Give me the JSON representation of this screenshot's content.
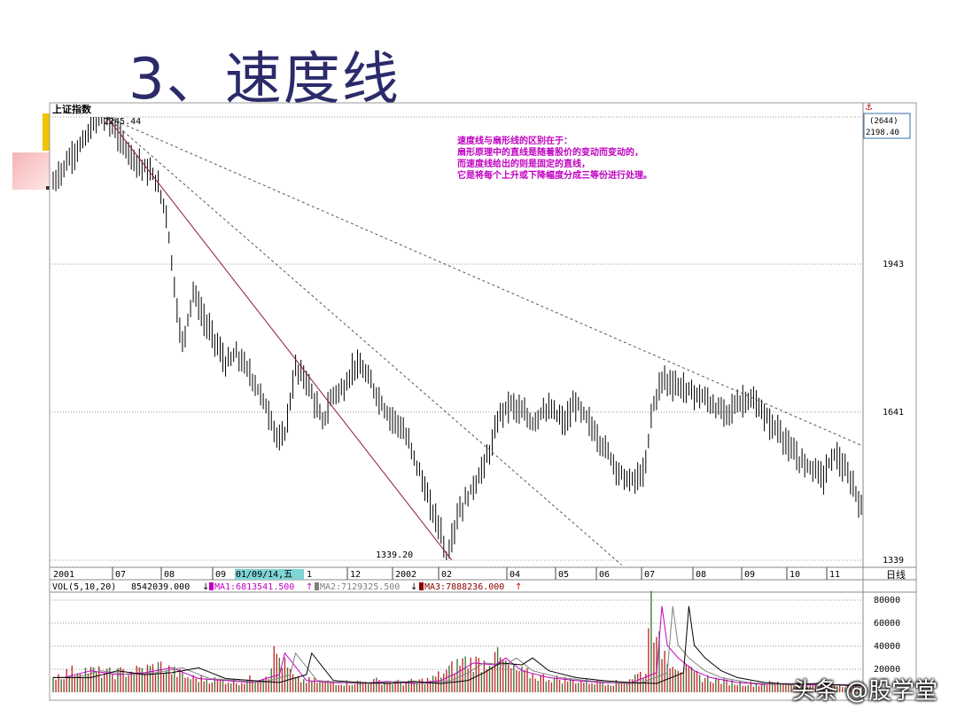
{
  "slide": {
    "title": "3、速度线",
    "watermark": "头条 @股学堂"
  },
  "chart_data": {
    "type": "candlestick",
    "title": "上证指数",
    "period_label": "日线",
    "y_ticks": [
      "2245",
      "1943",
      "1641",
      "1339"
    ],
    "x_ticks": [
      "2001",
      "07",
      "08",
      "09",
      "01/09/14,五",
      "1",
      "12",
      "2002",
      "02",
      "04",
      "05",
      "06",
      "07",
      "08",
      "09",
      "10",
      "11"
    ],
    "high_label": "2245.44",
    "low_label": "1339.20",
    "right_box": {
      "symbol": "⚓",
      "code": "(2644)",
      "price": "2198.40"
    },
    "annotation_lines": [
      "速度线与扇形线的区别在于：",
      "扇形原理中的直线是随着股价的变动而变动的，",
      "而速度线给出的则是固定的直线，",
      "它是将每个上升或下降幅度分成三等份进行处理。"
    ],
    "volume": {
      "label": "VOL(5,10,20)",
      "value": "8542039.000",
      "ma1": "MA1:6813541.500",
      "ma2": "MA2:7129325.500",
      "ma3": "MA3:7888236.000",
      "ticks": [
        "80000",
        "60000",
        "40000",
        "20000"
      ]
    },
    "price_range": [
      1339.2,
      2245.44
    ],
    "price_path": [
      [
        0,
        2110
      ],
      [
        3,
        2160
      ],
      [
        6,
        2200
      ],
      [
        8,
        2240
      ],
      [
        10,
        2245.44
      ],
      [
        13,
        2190
      ],
      [
        16,
        2150
      ],
      [
        19,
        2120
      ],
      [
        21,
        2050
      ],
      [
        23,
        1850
      ],
      [
        24,
        1780
      ],
      [
        26,
        1890
      ],
      [
        28,
        1830
      ],
      [
        30,
        1790
      ],
      [
        32,
        1740
      ],
      [
        34,
        1760
      ],
      [
        36,
        1730
      ],
      [
        38,
        1690
      ],
      [
        40,
        1640
      ],
      [
        42,
        1580
      ],
      [
        43,
        1600
      ],
      [
        45,
        1730
      ],
      [
        47,
        1710
      ],
      [
        49,
        1650
      ],
      [
        50,
        1620
      ],
      [
        52,
        1680
      ],
      [
        54,
        1690
      ],
      [
        56,
        1740
      ],
      [
        58,
        1720
      ],
      [
        60,
        1680
      ],
      [
        62,
        1640
      ],
      [
        64,
        1620
      ],
      [
        66,
        1580
      ],
      [
        68,
        1520
      ],
      [
        70,
        1450
      ],
      [
        72,
        1400
      ],
      [
        73,
        1339.2
      ],
      [
        75,
        1430
      ],
      [
        77,
        1470
      ],
      [
        79,
        1510
      ],
      [
        81,
        1560
      ],
      [
        83,
        1640
      ],
      [
        85,
        1660
      ],
      [
        87,
        1640
      ],
      [
        89,
        1620
      ],
      [
        91,
        1650
      ],
      [
        93,
        1640
      ],
      [
        95,
        1620
      ],
      [
        97,
        1660
      ],
      [
        99,
        1630
      ],
      [
        101,
        1590
      ],
      [
        103,
        1560
      ],
      [
        105,
        1520
      ],
      [
        107,
        1500
      ],
      [
        109,
        1510
      ],
      [
        110,
        1530
      ],
      [
        111,
        1640
      ],
      [
        113,
        1710
      ],
      [
        115,
        1700
      ],
      [
        117,
        1690
      ],
      [
        119,
        1680
      ],
      [
        121,
        1670
      ],
      [
        123,
        1650
      ],
      [
        125,
        1640
      ],
      [
        127,
        1660
      ],
      [
        129,
        1670
      ],
      [
        131,
        1650
      ],
      [
        133,
        1620
      ],
      [
        135,
        1600
      ],
      [
        137,
        1560
      ],
      [
        139,
        1540
      ],
      [
        141,
        1530
      ],
      [
        143,
        1510
      ],
      [
        145,
        1560
      ],
      [
        147,
        1520
      ],
      [
        149,
        1480
      ],
      [
        150,
        1440
      ]
    ],
    "volume_bars": [
      [
        0,
        15
      ],
      [
        5,
        22
      ],
      [
        10,
        18
      ],
      [
        15,
        20
      ],
      [
        20,
        25
      ],
      [
        25,
        14
      ],
      [
        30,
        12
      ],
      [
        35,
        10
      ],
      [
        40,
        18
      ],
      [
        41,
        40
      ],
      [
        45,
        12
      ],
      [
        50,
        10
      ],
      [
        55,
        9
      ],
      [
        60,
        11
      ],
      [
        65,
        9
      ],
      [
        70,
        12
      ],
      [
        73,
        20
      ],
      [
        76,
        30
      ],
      [
        80,
        28
      ],
      [
        82,
        35
      ],
      [
        85,
        22
      ],
      [
        90,
        15
      ],
      [
        95,
        12
      ],
      [
        100,
        10
      ],
      [
        105,
        9
      ],
      [
        110,
        20
      ],
      [
        111,
        88
      ],
      [
        112,
        48
      ],
      [
        114,
        35
      ],
      [
        117,
        22
      ],
      [
        120,
        15
      ],
      [
        125,
        10
      ],
      [
        130,
        8
      ],
      [
        135,
        9
      ],
      [
        140,
        7
      ],
      [
        145,
        8
      ],
      [
        150,
        6
      ]
    ]
  }
}
